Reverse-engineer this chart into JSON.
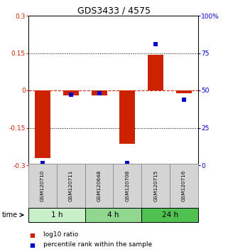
{
  "title": "GDS3433 / 4575",
  "samples": [
    "GSM120710",
    "GSM120711",
    "GSM120648",
    "GSM120708",
    "GSM120715",
    "GSM120716"
  ],
  "log10_ratio": [
    -0.27,
    -0.02,
    -0.02,
    -0.215,
    0.143,
    -0.01
  ],
  "percentile_rank": [
    1.5,
    47.0,
    48.0,
    1.5,
    81.0,
    44.0
  ],
  "groups": [
    {
      "label": "1 h",
      "indices": [
        0,
        1
      ],
      "color": "#c8f0c8"
    },
    {
      "label": "4 h",
      "indices": [
        2,
        3
      ],
      "color": "#90d890"
    },
    {
      "label": "24 h",
      "indices": [
        4,
        5
      ],
      "color": "#50c050"
    }
  ],
  "ylim_left": [
    -0.3,
    0.3
  ],
  "ylim_right": [
    0,
    100
  ],
  "yticks_left": [
    -0.3,
    -0.15,
    0.0,
    0.15,
    0.3
  ],
  "yticks_right": [
    0,
    25,
    50,
    75,
    100
  ],
  "ytick_labels_left": [
    "-0.3",
    "-0.15",
    "0",
    "0.15",
    "0.3"
  ],
  "ytick_labels_right": [
    "0",
    "25",
    "50",
    "75",
    "100%"
  ],
  "bar_color": "#cc2200",
  "dot_color": "#0000cc",
  "hline_color": "#cc2200",
  "grid_color": "#000000",
  "bg_color": "#ffffff",
  "plot_bg": "#ffffff",
  "left_axis_color": "#cc2200",
  "right_axis_color": "#0000cc",
  "bar_width": 0.55,
  "dot_size": 18,
  "box_color": "#d4d4d4",
  "box_border": "#888888"
}
